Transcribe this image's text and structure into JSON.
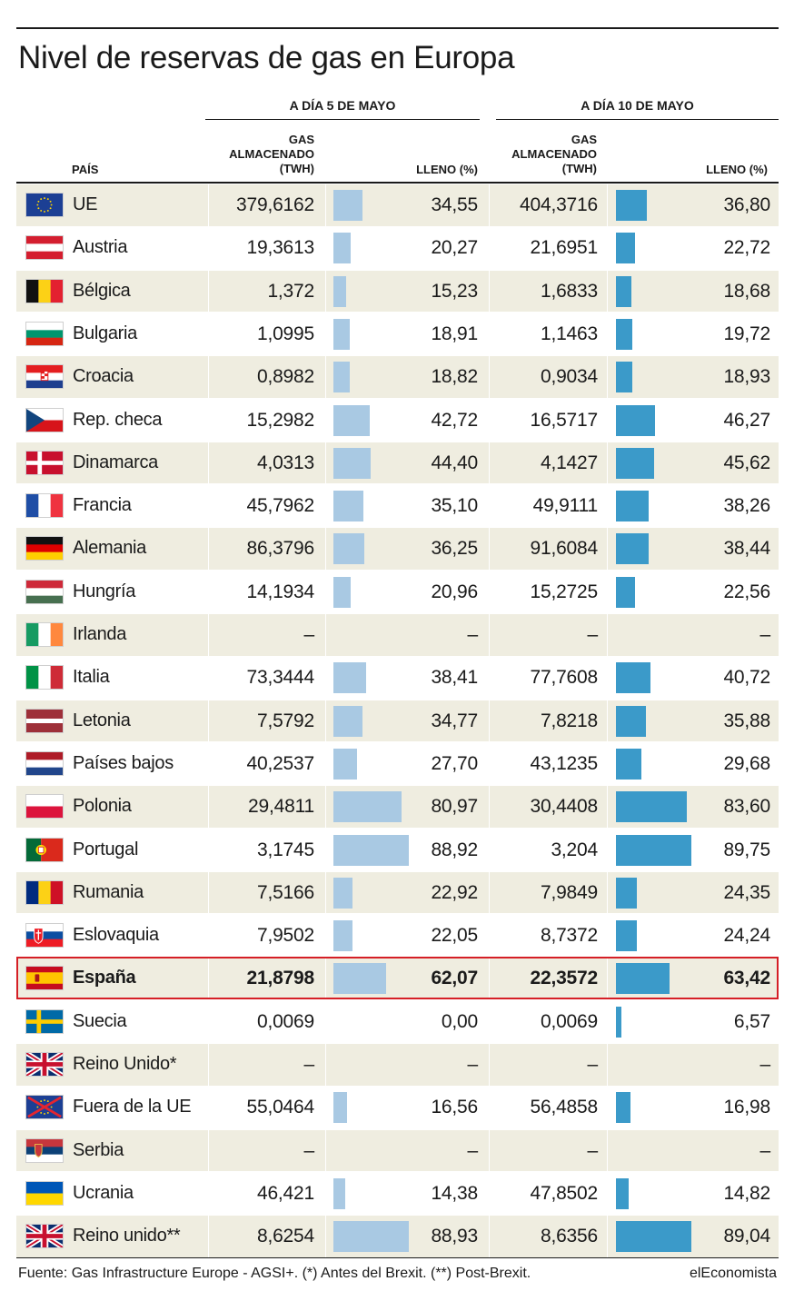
{
  "chart_data": {
    "type": "table",
    "title": "Nivel de reservas de gas en Europa",
    "groups": [
      "A DÍA 5 DE MAYO",
      "A DÍA 10 DE MAYO"
    ],
    "columns": {
      "country": "PAÍS",
      "stored_line1": "GAS",
      "stored_line2": "ALMACENADO",
      "stored_line3": "(TWH)",
      "full": "LLENO (%)"
    },
    "rows": [
      {
        "country": "UE",
        "flag": "eu",
        "s1": "379,6162",
        "p1": "34,55",
        "s2": "404,3716",
        "p2": "36,80",
        "v1": 34.55,
        "v2": 36.8
      },
      {
        "country": "Austria",
        "flag": "at",
        "s1": "19,3613",
        "p1": "20,27",
        "s2": "21,6951",
        "p2": "22,72",
        "v1": 20.27,
        "v2": 22.72
      },
      {
        "country": "Bélgica",
        "flag": "be",
        "s1": "1,372",
        "p1": "15,23",
        "s2": "1,6833",
        "p2": "18,68",
        "v1": 15.23,
        "v2": 18.68
      },
      {
        "country": "Bulgaria",
        "flag": "bg",
        "s1": "1,0995",
        "p1": "18,91",
        "s2": "1,1463",
        "p2": "19,72",
        "v1": 18.91,
        "v2": 19.72
      },
      {
        "country": "Croacia",
        "flag": "hr",
        "s1": "0,8982",
        "p1": "18,82",
        "s2": "0,9034",
        "p2": "18,93",
        "v1": 18.82,
        "v2": 18.93
      },
      {
        "country": "Rep. checa",
        "flag": "cz",
        "s1": "15,2982",
        "p1": "42,72",
        "s2": "16,5717",
        "p2": "46,27",
        "v1": 42.72,
        "v2": 46.27
      },
      {
        "country": "Dinamarca",
        "flag": "dk",
        "s1": "4,0313",
        "p1": "44,40",
        "s2": "4,1427",
        "p2": "45,62",
        "v1": 44.4,
        "v2": 45.62
      },
      {
        "country": "Francia",
        "flag": "fr",
        "s1": "45,7962",
        "p1": "35,10",
        "s2": "49,9111",
        "p2": "38,26",
        "v1": 35.1,
        "v2": 38.26
      },
      {
        "country": "Alemania",
        "flag": "de",
        "s1": "86,3796",
        "p1": "36,25",
        "s2": "91,6084",
        "p2": "38,44",
        "v1": 36.25,
        "v2": 38.44
      },
      {
        "country": "Hungría",
        "flag": "hu",
        "s1": "14,1934",
        "p1": "20,96",
        "s2": "15,2725",
        "p2": "22,56",
        "v1": 20.96,
        "v2": 22.56
      },
      {
        "country": "Irlanda",
        "flag": "ie",
        "s1": "–",
        "p1": "–",
        "s2": "–",
        "p2": "–",
        "v1": null,
        "v2": null
      },
      {
        "country": "Italia",
        "flag": "it",
        "s1": "73,3444",
        "p1": "38,41",
        "s2": "77,7608",
        "p2": "40,72",
        "v1": 38.41,
        "v2": 40.72
      },
      {
        "country": "Letonia",
        "flag": "lv",
        "s1": "7,5792",
        "p1": "34,77",
        "s2": "7,8218",
        "p2": "35,88",
        "v1": 34.77,
        "v2": 35.88
      },
      {
        "country": "Países bajos",
        "flag": "nl",
        "s1": "40,2537",
        "p1": "27,70",
        "s2": "43,1235",
        "p2": "29,68",
        "v1": 27.7,
        "v2": 29.68
      },
      {
        "country": "Polonia",
        "flag": "pl",
        "s1": "29,4811",
        "p1": "80,97",
        "s2": "30,4408",
        "p2": "83,60",
        "v1": 80.97,
        "v2": 83.6
      },
      {
        "country": "Portugal",
        "flag": "pt",
        "s1": "3,1745",
        "p1": "88,92",
        "s2": "3,204",
        "p2": "89,75",
        "v1": 88.92,
        "v2": 89.75
      },
      {
        "country": "Rumania",
        "flag": "ro",
        "s1": "7,5166",
        "p1": "22,92",
        "s2": "7,9849",
        "p2": "24,35",
        "v1": 22.92,
        "v2": 24.35
      },
      {
        "country": "Eslovaquia",
        "flag": "sk",
        "s1": "7,9502",
        "p1": "22,05",
        "s2": "8,7372",
        "p2": "24,24",
        "v1": 22.05,
        "v2": 24.24
      },
      {
        "country": "España",
        "flag": "es",
        "s1": "21,8798",
        "p1": "62,07",
        "s2": "22,3572",
        "p2": "63,42",
        "v1": 62.07,
        "v2": 63.42,
        "highlight": true
      },
      {
        "country": "Suecia",
        "flag": "se",
        "s1": "0,0069",
        "p1": "0,00",
        "s2": "0,0069",
        "p2": "6,57",
        "v1": 0.0,
        "v2": 6.57
      },
      {
        "country": "Reino Unido*",
        "flag": "gb",
        "s1": "–",
        "p1": "–",
        "s2": "–",
        "p2": "–",
        "v1": null,
        "v2": null
      },
      {
        "country": "Fuera de la UE",
        "flag": "noneu",
        "s1": "55,0464",
        "p1": "16,56",
        "s2": "56,4858",
        "p2": "16,98",
        "v1": 16.56,
        "v2": 16.98
      },
      {
        "country": "Serbia",
        "flag": "rs",
        "s1": "–",
        "p1": "–",
        "s2": "–",
        "p2": "–",
        "v1": null,
        "v2": null
      },
      {
        "country": "Ucrania",
        "flag": "ua",
        "s1": "46,421",
        "p1": "14,38",
        "s2": "47,8502",
        "p2": "14,82",
        "v1": 14.38,
        "v2": 14.82
      },
      {
        "country": "Reino unido**",
        "flag": "gb",
        "s1": "8,6254",
        "p1": "88,93",
        "s2": "8,6356",
        "p2": "89,04",
        "v1": 88.93,
        "v2": 89.04
      }
    ],
    "bar_scale_max": 100,
    "colors": {
      "bar_may5": "#a9c9e3",
      "bar_may10": "#3b9ac9",
      "stripe": "#efede0",
      "highlight": "#d51f26"
    }
  },
  "footer": {
    "source": "Fuente: Gas Infrastructure Europe - AGSI+. (*) Antes del Brexit. (**) Post-Brexit.",
    "brand": "elEconomista"
  }
}
